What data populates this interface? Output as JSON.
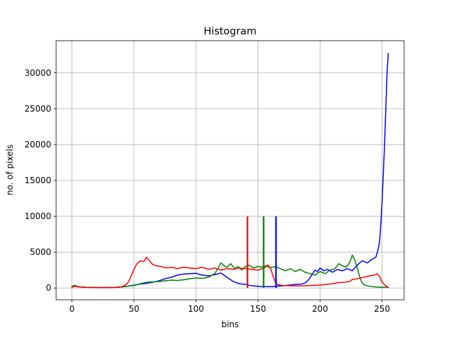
{
  "chart_data": {
    "type": "line",
    "title": "Histogram",
    "xlabel": "bins",
    "ylabel": "no. of pixels",
    "xlim": [
      -12.75,
      267.75
    ],
    "ylim": [
      -1640,
      34480
    ],
    "xticks": [
      0,
      50,
      100,
      150,
      200,
      250
    ],
    "yticks": [
      0,
      5000,
      10000,
      15000,
      20000,
      25000,
      30000
    ],
    "grid": true,
    "colors": {
      "blue": "#0000ff",
      "green": "#008000",
      "red": "#ff0000"
    },
    "series": [
      {
        "color": "blue",
        "points": [
          [
            0,
            150
          ],
          [
            2,
            350
          ],
          [
            4,
            200
          ],
          [
            8,
            120
          ],
          [
            15,
            80
          ],
          [
            25,
            60
          ],
          [
            35,
            100
          ],
          [
            40,
            150
          ],
          [
            45,
            250
          ],
          [
            50,
            400
          ],
          [
            55,
            550
          ],
          [
            60,
            650
          ],
          [
            65,
            800
          ],
          [
            70,
            1000
          ],
          [
            75,
            1300
          ],
          [
            80,
            1500
          ],
          [
            85,
            1800
          ],
          [
            90,
            1950
          ],
          [
            95,
            2000
          ],
          [
            100,
            2050
          ],
          [
            105,
            1800
          ],
          [
            110,
            1700
          ],
          [
            115,
            1850
          ],
          [
            120,
            2100
          ],
          [
            125,
            1500
          ],
          [
            130,
            900
          ],
          [
            135,
            600
          ],
          [
            140,
            500
          ],
          [
            142,
            400
          ],
          [
            145,
            300
          ],
          [
            150,
            250
          ],
          [
            155,
            200
          ],
          [
            160,
            200
          ],
          [
            165,
            250
          ],
          [
            170,
            300
          ],
          [
            175,
            400
          ],
          [
            180,
            500
          ],
          [
            185,
            550
          ],
          [
            188,
            700
          ],
          [
            191,
            1200
          ],
          [
            194,
            2000
          ],
          [
            196,
            2500
          ],
          [
            198,
            2300
          ],
          [
            200,
            2800
          ],
          [
            203,
            2400
          ],
          [
            206,
            2600
          ],
          [
            210,
            2200
          ],
          [
            214,
            2600
          ],
          [
            218,
            2400
          ],
          [
            222,
            2700
          ],
          [
            226,
            2400
          ],
          [
            230,
            3200
          ],
          [
            234,
            3800
          ],
          [
            238,
            3500
          ],
          [
            242,
            4000
          ],
          [
            245,
            4300
          ],
          [
            247,
            5500
          ],
          [
            248,
            6500
          ],
          [
            249,
            9000
          ],
          [
            250,
            12000
          ],
          [
            252,
            20000
          ],
          [
            254,
            30000
          ],
          [
            255,
            32700
          ]
        ]
      },
      {
        "color": "green",
        "points": [
          [
            0,
            200
          ],
          [
            2,
            400
          ],
          [
            4,
            250
          ],
          [
            8,
            150
          ],
          [
            15,
            80
          ],
          [
            25,
            60
          ],
          [
            35,
            80
          ],
          [
            40,
            150
          ],
          [
            45,
            250
          ],
          [
            50,
            350
          ],
          [
            55,
            600
          ],
          [
            60,
            800
          ],
          [
            65,
            850
          ],
          [
            70,
            900
          ],
          [
            75,
            1000
          ],
          [
            80,
            1100
          ],
          [
            85,
            1050
          ],
          [
            90,
            1150
          ],
          [
            95,
            1300
          ],
          [
            100,
            1400
          ],
          [
            105,
            1350
          ],
          [
            110,
            1500
          ],
          [
            115,
            2000
          ],
          [
            118,
            2800
          ],
          [
            120,
            3500
          ],
          [
            122,
            3200
          ],
          [
            125,
            2900
          ],
          [
            128,
            3400
          ],
          [
            131,
            2700
          ],
          [
            134,
            3000
          ],
          [
            137,
            2500
          ],
          [
            140,
            3000
          ],
          [
            143,
            3200
          ],
          [
            146,
            2800
          ],
          [
            150,
            3000
          ],
          [
            153,
            2900
          ],
          [
            156,
            3100
          ],
          [
            160,
            2800
          ],
          [
            164,
            3000
          ],
          [
            168,
            2700
          ],
          [
            172,
            2400
          ],
          [
            176,
            2700
          ],
          [
            180,
            2300
          ],
          [
            184,
            2600
          ],
          [
            188,
            2200
          ],
          [
            192,
            2000
          ],
          [
            196,
            1800
          ],
          [
            200,
            2300
          ],
          [
            204,
            2000
          ],
          [
            208,
            2500
          ],
          [
            212,
            2700
          ],
          [
            215,
            3400
          ],
          [
            218,
            3100
          ],
          [
            221,
            2900
          ],
          [
            224,
            3600
          ],
          [
            226,
            4600
          ],
          [
            228,
            3900
          ],
          [
            230,
            2800
          ],
          [
            232,
            1500
          ],
          [
            234,
            700
          ],
          [
            236,
            400
          ],
          [
            240,
            250
          ],
          [
            245,
            150
          ],
          [
            250,
            100
          ],
          [
            255,
            120
          ]
        ]
      },
      {
        "color": "red",
        "points": [
          [
            0,
            100
          ],
          [
            2,
            250
          ],
          [
            4,
            200
          ],
          [
            8,
            120
          ],
          [
            15,
            80
          ],
          [
            25,
            60
          ],
          [
            35,
            100
          ],
          [
            40,
            150
          ],
          [
            44,
            500
          ],
          [
            46,
            1000
          ],
          [
            48,
            1800
          ],
          [
            50,
            2600
          ],
          [
            52,
            3300
          ],
          [
            55,
            3800
          ],
          [
            58,
            3700
          ],
          [
            60,
            4300
          ],
          [
            62,
            3900
          ],
          [
            65,
            3300
          ],
          [
            68,
            3100
          ],
          [
            72,
            3000
          ],
          [
            76,
            2800
          ],
          [
            80,
            2900
          ],
          [
            85,
            2700
          ],
          [
            90,
            2900
          ],
          [
            95,
            2800
          ],
          [
            100,
            2700
          ],
          [
            105,
            2900
          ],
          [
            110,
            2600
          ],
          [
            115,
            2800
          ],
          [
            120,
            2500
          ],
          [
            125,
            2700
          ],
          [
            130,
            2600
          ],
          [
            135,
            2800
          ],
          [
            140,
            2700
          ],
          [
            145,
            2600
          ],
          [
            150,
            2500
          ],
          [
            155,
            2800
          ],
          [
            158,
            3200
          ],
          [
            160,
            2800
          ],
          [
            162,
            1700
          ],
          [
            164,
            800
          ],
          [
            166,
            450
          ],
          [
            170,
            350
          ],
          [
            175,
            320
          ],
          [
            180,
            300
          ],
          [
            185,
            310
          ],
          [
            190,
            330
          ],
          [
            195,
            380
          ],
          [
            200,
            420
          ],
          [
            205,
            500
          ],
          [
            210,
            600
          ],
          [
            215,
            750
          ],
          [
            220,
            800
          ],
          [
            224,
            900
          ],
          [
            226,
            1200
          ],
          [
            230,
            1300
          ],
          [
            235,
            1500
          ],
          [
            240,
            1700
          ],
          [
            244,
            1800
          ],
          [
            246,
            2000
          ],
          [
            248,
            1600
          ],
          [
            250,
            800
          ],
          [
            253,
            300
          ],
          [
            255,
            100
          ]
        ]
      }
    ],
    "vertical_lines": [
      {
        "color": "red",
        "x": 141.5,
        "y": [
          0,
          10000
        ]
      },
      {
        "color": "green",
        "x": 154.5,
        "y": [
          0,
          10000
        ]
      },
      {
        "color": "blue",
        "x": 164.5,
        "y": [
          0,
          10000
        ]
      }
    ]
  }
}
